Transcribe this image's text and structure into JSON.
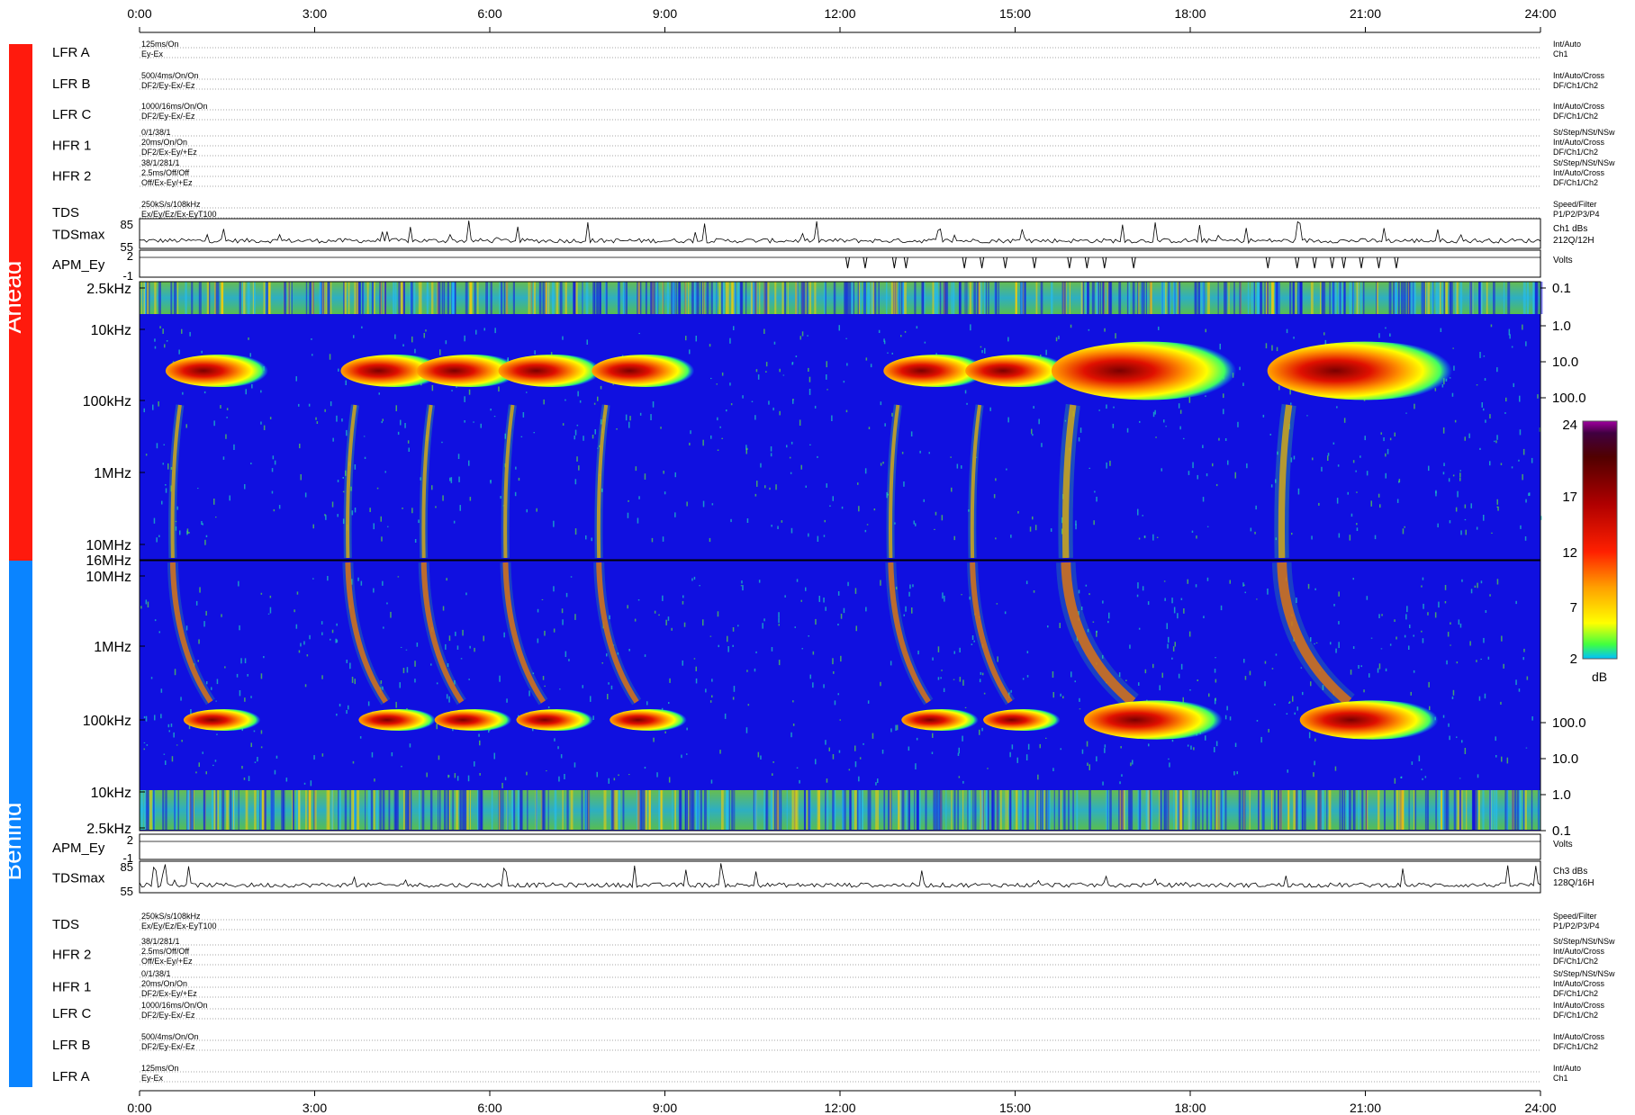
{
  "time_ticks": [
    "0:00",
    "3:00",
    "6:00",
    "9:00",
    "12:00",
    "15:00",
    "18:00",
    "21:00",
    "24:00"
  ],
  "spacecraft": {
    "ahead": "Ahead",
    "behind": "Behind"
  },
  "colors": {
    "ahead": "#ff1a0d",
    "behind": "#0a84ff",
    "background": "#1010e0"
  },
  "ahead_rows": [
    {
      "name": "LFR A",
      "left": [
        "125ms/On",
        "Ey-Ex"
      ],
      "right": [
        "Int/Auto",
        "Ch1"
      ]
    },
    {
      "name": "LFR B",
      "left": [
        "500/4ms/On/On",
        "DF2/Ey-Ex/-Ez"
      ],
      "right": [
        "Int/Auto/Cross",
        "DF/Ch1/Ch2"
      ]
    },
    {
      "name": "LFR C",
      "left": [
        "1000/16ms/On/On",
        "DF2/Ey-Ex/-Ez"
      ],
      "right": [
        "Int/Auto/Cross",
        "DF/Ch1/Ch2"
      ]
    },
    {
      "name": "HFR 1",
      "left": [
        "0/1/38/1",
        "20ms/On/On",
        "DF2/Ex-Ey/+Ez"
      ],
      "right": [
        "St/Step/NSt/NSw",
        "Int/Auto/Cross",
        "DF/Ch1/Ch2"
      ]
    },
    {
      "name": "HFR 2",
      "left": [
        "38/1/281/1",
        "2.5ms/Off/Off",
        "Off/Ex-Ey/+Ez"
      ],
      "right": [
        "St/Step/NSt/NSw",
        "Int/Auto/Cross",
        "DF/Ch1/Ch2"
      ]
    },
    {
      "name": "TDS",
      "left": [
        "250kS/s/108kHz",
        "Ex/Ey/Ez/Ex-EyT100"
      ],
      "right": [
        "Speed/Filter",
        "P1/P2/P3/P4"
      ]
    }
  ],
  "behind_rows": [
    {
      "name": "TDS",
      "left": [
        "250kS/s/108kHz",
        "Ex/Ey/Ez/Ex-EyT100"
      ],
      "right": [
        "Speed/Filter",
        "P1/P2/P3/P4"
      ]
    },
    {
      "name": "HFR 2",
      "left": [
        "38/1/281/1",
        "2.5ms/Off/Off",
        "Off/Ex-Ey/+Ez"
      ],
      "right": [
        "St/Step/NSt/NSw",
        "Int/Auto/Cross",
        "DF/Ch1/Ch2"
      ]
    },
    {
      "name": "HFR 1",
      "left": [
        "0/1/38/1",
        "20ms/On/On",
        "DF2/Ex-Ey/+Ez"
      ],
      "right": [
        "St/Step/NSt/NSw",
        "Int/Auto/Cross",
        "DF/Ch1/Ch2"
      ]
    },
    {
      "name": "LFR C",
      "left": [
        "1000/16ms/On/On",
        "DF2/Ey-Ex/-Ez"
      ],
      "right": [
        "Int/Auto/Cross",
        "DF/Ch1/Ch2"
      ]
    },
    {
      "name": "LFR B",
      "left": [
        "500/4ms/On/On",
        "DF2/Ey-Ex/-Ez"
      ],
      "right": [
        "Int/Auto/Cross",
        "DF/Ch1/Ch2"
      ]
    },
    {
      "name": "LFR A",
      "left": [
        "125ms/On",
        "Ey-Ex"
      ],
      "right": [
        "Int/Auto",
        "Ch1"
      ]
    }
  ],
  "ahead_tdsmax": {
    "label": "TDSmax",
    "ticks": [
      "85",
      "55"
    ],
    "right": [
      "Ch1 dBs",
      "212Q/12H"
    ]
  },
  "ahead_apm": {
    "label": "APM_Ey",
    "ticks": [
      "2",
      "-1"
    ],
    "right": [
      "Volts"
    ]
  },
  "behind_apm": {
    "label": "APM_Ey",
    "ticks": [
      "2",
      "-1"
    ],
    "right": [
      "Volts"
    ]
  },
  "behind_tdsmax": {
    "label": "TDSmax",
    "ticks": [
      "85",
      "55"
    ],
    "right": [
      "Ch3 dBs",
      "128Q/16H"
    ]
  },
  "ahead_freq_ticks": [
    "2.5kHz",
    "10kHz",
    "100kHz",
    "1MHz",
    "10MHz",
    "16MHz"
  ],
  "behind_freq_ticks": [
    "10MHz",
    "1MHz",
    "100kHz",
    "10kHz",
    "2.5kHz"
  ],
  "ahead_right_ticks": [
    "0.1",
    "1.0",
    "10.0",
    "100.0"
  ],
  "behind_right_ticks": [
    "100.0",
    "10.0",
    "1.0",
    "0.1"
  ],
  "colorbar": {
    "ticks": [
      "24",
      "17",
      "12",
      "7",
      "2"
    ],
    "unit": "dB"
  },
  "chart_data": {
    "type": "heatmap",
    "title": "",
    "x_axis": {
      "range_hours": [
        0,
        24
      ],
      "tick_labels": [
        "0:00",
        "3:00",
        "6:00",
        "9:00",
        "12:00",
        "15:00",
        "18:00",
        "21:00",
        "24:00"
      ]
    },
    "ahead_frequency_axis": [
      "2.5kHz",
      "10kHz",
      "100kHz",
      "1MHz",
      "10MHz",
      "16MHz"
    ],
    "behind_frequency_axis": [
      "16MHz",
      "10MHz",
      "1MHz",
      "100kHz",
      "10kHz",
      "2.5kHz"
    ],
    "colorbar_db_range": [
      2,
      24
    ],
    "type_iii_bursts_hours": [
      0.6,
      3.6,
      4.9,
      6.3,
      7.9,
      12.9,
      14.3,
      15.9,
      19.6
    ],
    "tdsmax_range_db": [
      55,
      85
    ],
    "apm_range_volts": [
      -1,
      2
    ]
  }
}
